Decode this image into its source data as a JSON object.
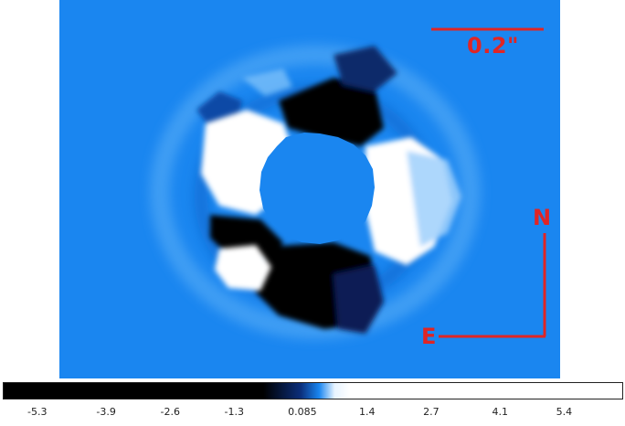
{
  "annotations": {
    "scale_bar_label": "0.2\"",
    "north_label": "N",
    "east_label": "E",
    "color": "#e02525"
  },
  "image": {
    "background_color": "#1a86f0",
    "description_colors": {
      "low": "#000000",
      "mid": "#1a86f0",
      "high": "#ffffff"
    }
  },
  "colorbar": {
    "ticks": [
      "-5.3",
      "-3.9",
      "-2.6",
      "-1.3",
      "0.085",
      "1.4",
      "2.7",
      "4.1",
      "5.4"
    ],
    "range": [
      -6.0,
      6.6
    ]
  }
}
